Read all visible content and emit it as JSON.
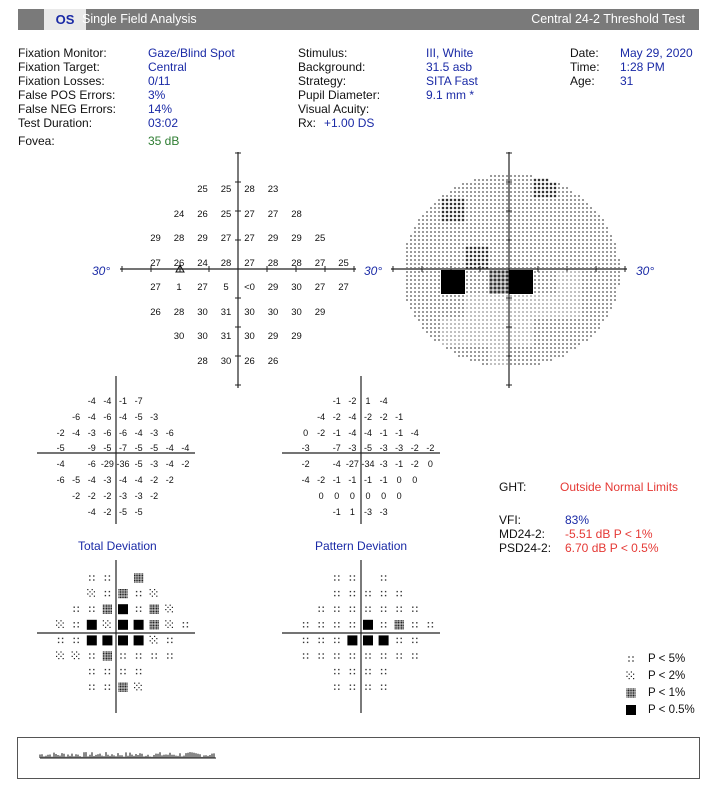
{
  "header": {
    "eye": "OS",
    "title": "Single Field Analysis",
    "test_name": "Central 24-2 Threshold Test"
  },
  "info": {
    "col1": [
      {
        "label": "Fixation Monitor:",
        "value": "Gaze/Blind Spot"
      },
      {
        "label": "Fixation Target:",
        "value": "Central"
      },
      {
        "label": "Fixation Losses:",
        "value": "0/11"
      },
      {
        "label": "False POS Errors:",
        "value": "3%"
      },
      {
        "label": "False NEG Errors:",
        "value": "14%"
      },
      {
        "label": "Test Duration:",
        "value": "03:02"
      }
    ],
    "fovea": {
      "label": "Fovea:",
      "value": "35 dB"
    },
    "col2": [
      {
        "label": "Stimulus:",
        "value": "III, White"
      },
      {
        "label": "Background:",
        "value": "31.5 asb"
      },
      {
        "label": "Strategy:",
        "value": "SITA Fast"
      },
      {
        "label": "Pupil Diameter:",
        "value": "9.1 mm *"
      },
      {
        "label": "Visual Acuity:",
        "value": ""
      }
    ],
    "rx": {
      "label": "Rx:",
      "value": "+1.00 DS"
    },
    "col3": [
      {
        "label": "Date:",
        "value": "May 29, 2020"
      },
      {
        "label": "Time:",
        "value": "1:28 PM"
      },
      {
        "label": "Age:",
        "value": "31"
      }
    ]
  },
  "degree_label": "30°",
  "threshold_grid": [
    [
      "",
      "",
      "",
      "25",
      "25",
      "28",
      "23",
      "",
      "",
      ""
    ],
    [
      "",
      "",
      "24",
      "26",
      "25",
      "27",
      "27",
      "28",
      "",
      ""
    ],
    [
      "",
      "29",
      "28",
      "29",
      "27",
      "27",
      "29",
      "29",
      "25",
      ""
    ],
    [
      "",
      "27",
      "26",
      "24",
      "28",
      "27",
      "28",
      "28",
      "27",
      "25"
    ],
    [
      "",
      "27",
      "1",
      "27",
      "5",
      "<0",
      "29",
      "30",
      "27",
      "27"
    ],
    [
      "",
      "26",
      "28",
      "30",
      "31",
      "30",
      "30",
      "30",
      "29",
      ""
    ],
    [
      "",
      "",
      "30",
      "30",
      "31",
      "30",
      "29",
      "29",
      "",
      ""
    ],
    [
      "",
      "",
      "",
      "28",
      "30",
      "26",
      "26",
      "",
      "",
      ""
    ]
  ],
  "total_deviation": [
    [
      "",
      "",
      "",
      "-4",
      "-4",
      "-1",
      "-7",
      "",
      "",
      ""
    ],
    [
      "",
      "",
      "-6",
      "-4",
      "-6",
      "-4",
      "-5",
      "-3",
      "",
      ""
    ],
    [
      "",
      "-2",
      "-4",
      "-3",
      "-6",
      "-6",
      "-4",
      "-3",
      "-6",
      ""
    ],
    [
      "",
      "-5",
      "",
      "-9",
      "-5",
      "-7",
      "-5",
      "-5",
      "-4",
      "-4"
    ],
    [
      "",
      "-4",
      "",
      "-6",
      "-29",
      "-36",
      "-5",
      "-3",
      "-4",
      "-2"
    ],
    [
      "",
      "-6",
      "-5",
      "-4",
      "-3",
      "-4",
      "-4",
      "-2",
      "-2",
      ""
    ],
    [
      "",
      "",
      "-2",
      "-2",
      "-2",
      "-3",
      "-3",
      "-2",
      "",
      ""
    ],
    [
      "",
      "",
      "",
      "-4",
      "-2",
      "-5",
      "-5",
      "",
      "",
      ""
    ]
  ],
  "pattern_deviation": [
    [
      "",
      "",
      "",
      "-1",
      "-2",
      "1",
      "-4",
      "",
      "",
      ""
    ],
    [
      "",
      "",
      "-4",
      "-2",
      "-4",
      "-2",
      "-2",
      "-1",
      "",
      ""
    ],
    [
      "",
      "0",
      "-2",
      "-1",
      "-4",
      "-4",
      "-1",
      "-1",
      "-4",
      ""
    ],
    [
      "",
      "-3",
      "",
      "-7",
      "-3",
      "-5",
      "-3",
      "-3",
      "-2",
      "-2"
    ],
    [
      "",
      "-2",
      "",
      "-4",
      "-27",
      "-34",
      "-3",
      "-1",
      "-2",
      "0"
    ],
    [
      "",
      "-4",
      "-2",
      "-1",
      "-1",
      "-1",
      "-1",
      "0",
      "0",
      ""
    ],
    [
      "",
      "",
      "0",
      "0",
      "0",
      "0",
      "0",
      "0",
      "",
      ""
    ],
    [
      "",
      "",
      "",
      "-1",
      "1",
      "-3",
      "-3",
      "",
      "",
      ""
    ]
  ],
  "total_deviation_caption": "Total Deviation",
  "pattern_deviation_caption": "Pattern Deviation",
  "total_prob": [
    [
      0,
      0,
      0,
      1,
      1,
      0,
      3,
      0,
      0,
      0
    ],
    [
      0,
      0,
      0,
      2,
      1,
      3,
      1,
      2,
      0,
      0
    ],
    [
      0,
      0,
      1,
      1,
      3,
      4,
      1,
      3,
      2,
      0
    ],
    [
      0,
      2,
      1,
      4,
      2,
      4,
      4,
      3,
      2,
      1
    ],
    [
      0,
      1,
      1,
      4,
      4,
      4,
      4,
      2,
      1,
      0
    ],
    [
      0,
      2,
      2,
      1,
      3,
      1,
      1,
      1,
      1,
      0
    ],
    [
      0,
      0,
      0,
      1,
      1,
      1,
      1,
      0,
      0,
      0
    ],
    [
      0,
      0,
      0,
      1,
      1,
      3,
      2,
      0,
      0,
      0
    ]
  ],
  "pattern_prob": [
    [
      0,
      0,
      0,
      1,
      1,
      0,
      1,
      0,
      0,
      0
    ],
    [
      0,
      0,
      0,
      1,
      1,
      1,
      1,
      1,
      0,
      0
    ],
    [
      0,
      0,
      1,
      1,
      1,
      1,
      1,
      1,
      1,
      0
    ],
    [
      0,
      1,
      1,
      1,
      1,
      4,
      1,
      3,
      1,
      1
    ],
    [
      0,
      1,
      1,
      1,
      4,
      4,
      4,
      1,
      1,
      0
    ],
    [
      0,
      1,
      1,
      1,
      1,
      1,
      1,
      1,
      1,
      0
    ],
    [
      0,
      0,
      0,
      1,
      1,
      1,
      1,
      0,
      0,
      0
    ],
    [
      0,
      0,
      0,
      1,
      1,
      1,
      1,
      0,
      0,
      0
    ]
  ],
  "ght": {
    "label": "GHT:",
    "value": "Outside Normal Limits"
  },
  "indices": [
    {
      "label": "VFI:",
      "value": "83%"
    },
    {
      "label": "MD24-2:",
      "value": "-5.51 dB P < 1%"
    },
    {
      "label": "PSD24-2:",
      "value": "6.70 dB P < 0.5%"
    }
  ],
  "legend": [
    {
      "label": "P < 5%",
      "level": 1
    },
    {
      "label": "P < 2%",
      "level": 2
    },
    {
      "label": "P < 1%",
      "level": 3
    },
    {
      "label": "P < 0.5%",
      "level": 4
    }
  ],
  "colors": {
    "header_bg": "#7a7a7a",
    "blue_text": "#1a2aa6",
    "red_text": "#e53935",
    "green_text": "#2e7d32"
  }
}
